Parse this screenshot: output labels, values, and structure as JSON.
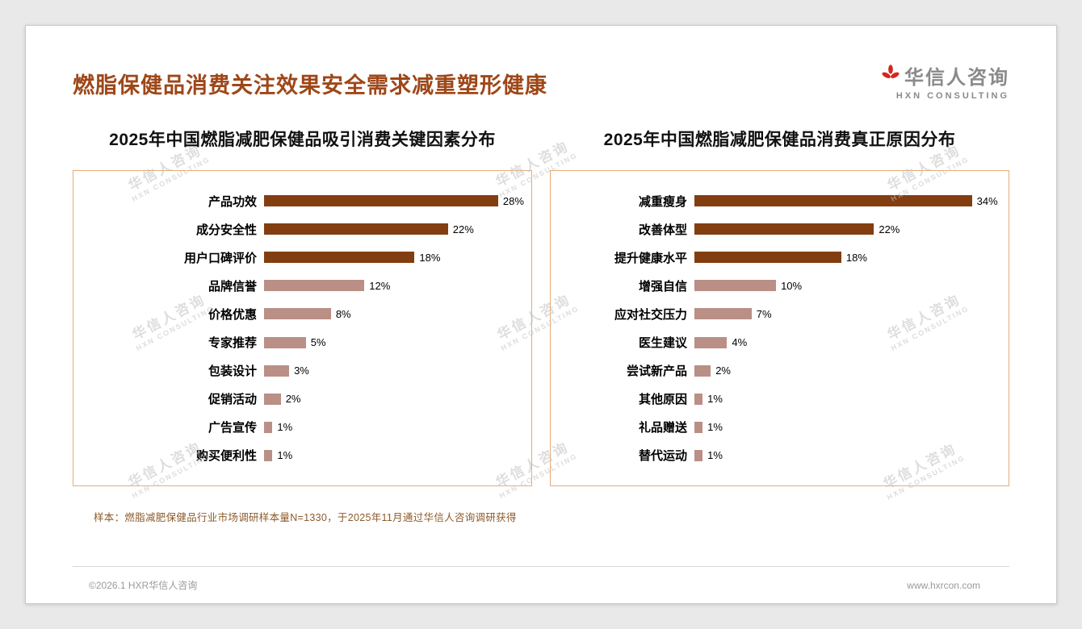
{
  "page": {
    "title": "燃脂保健品消费关注效果安全需求减重塑形健康",
    "logo": {
      "name": "华信人咨询",
      "subtitle": "HXN CONSULTING"
    },
    "watermark": {
      "line1": "华信人咨询",
      "line2": "HXN CONSULTING"
    },
    "footnote": "样本：燃脂减肥保健品行业市场调研样本量N=1330，于2025年11月通过华信人咨询调研获得",
    "footer": {
      "left": "©2026.1 HXR华信人咨询",
      "right": "www.hxrcon.com"
    }
  },
  "chart_data": [
    {
      "type": "bar",
      "orientation": "horizontal",
      "title": "2025年中国燃脂减肥保健品吸引消费关键因素分布",
      "categories": [
        "产品功效",
        "成分安全性",
        "用户口碑评价",
        "品牌信誉",
        "价格优惠",
        "专家推荐",
        "包装设计",
        "促销活动",
        "广告宣传",
        "购买便利性"
      ],
      "values": [
        28,
        22,
        18,
        12,
        8,
        5,
        3,
        2,
        1,
        1
      ],
      "unit": "%",
      "axis_max": 31,
      "grid": false,
      "legend": false,
      "highlight_count": 3,
      "colors": {
        "highlight": "#823e10",
        "normal": "#b98f86"
      }
    },
    {
      "type": "bar",
      "orientation": "horizontal",
      "title": "2025年中国燃脂减肥保健品消费真正原因分布",
      "categories": [
        "减重瘦身",
        "改善体型",
        "提升健康水平",
        "增强自信",
        "应对社交压力",
        "医生建议",
        "尝试新产品",
        "其他原因",
        "礼品赠送",
        "替代运动"
      ],
      "values": [
        34,
        22,
        18,
        10,
        7,
        4,
        2,
        1,
        1,
        1
      ],
      "unit": "%",
      "axis_max": 37.5,
      "grid": false,
      "legend": false,
      "highlight_count": 3,
      "colors": {
        "highlight": "#823e10",
        "normal": "#b98f86"
      }
    }
  ]
}
